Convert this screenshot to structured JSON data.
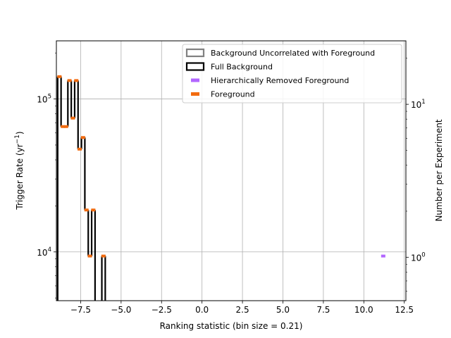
{
  "chart_data": {
    "type": "histogram",
    "xlabel": "Ranking statistic (bin size = 0.21)",
    "ylabel": "Trigger Rate (yr",
    "ylabel_sup": "−1",
    "ylabel_end": ")",
    "y2label": "Number per Experiment",
    "xlim": [
      -9.0,
      12.6
    ],
    "ylim": [
      4800,
      240000
    ],
    "y2lim": [
      0.52,
      26
    ],
    "yscale": "log",
    "y2scale": "log",
    "grid": true,
    "legend_position": "top-right",
    "xticks": [
      -7.5,
      -5.0,
      -2.5,
      0.0,
      2.5,
      5.0,
      7.5,
      10.0,
      12.5
    ],
    "xtick_labels": [
      "−7.5",
      "−5.0",
      "−2.5",
      "0.0",
      "2.5",
      "5.0",
      "7.5",
      "10.0",
      "12.5"
    ],
    "yticks": [
      {
        "value": 10000,
        "base": "10",
        "exp": "4"
      },
      {
        "value": 100000,
        "base": "10",
        "exp": "5"
      }
    ],
    "y2ticks": [
      {
        "value": 1,
        "base": "10",
        "exp": "0"
      },
      {
        "value": 10,
        "base": "10",
        "exp": "1"
      }
    ],
    "legend": [
      {
        "label": "Background Uncorrelated with Foreground",
        "style": "outline",
        "color": "#808080"
      },
      {
        "label": "Full Background",
        "style": "outline",
        "color": "#000000"
      },
      {
        "label": "Hierarchically Removed Foreground",
        "style": "marker",
        "color": "#b266ff"
      },
      {
        "label": "Foreground",
        "style": "marker",
        "color": "#f26b0f"
      }
    ],
    "series": [
      {
        "name": "Full Background",
        "kind": "step",
        "color": "#000000",
        "bin_edges": [
          -8.92,
          -8.71,
          -8.5,
          -8.29,
          -8.08,
          -7.87,
          -7.66,
          -7.45,
          -7.24,
          -7.03,
          -6.82,
          -6.61,
          -6.4,
          -6.19,
          -5.98
        ],
        "values": [
          140000,
          66000,
          66000,
          132000,
          75000,
          132000,
          47000,
          56000,
          18800,
          9400,
          18800,
          3000,
          3000,
          9400
        ]
      },
      {
        "name": "Foreground",
        "kind": "scatter",
        "marker": "square",
        "color": "#f26b0f",
        "x": [
          -8.81,
          -8.6,
          -8.4,
          -8.19,
          -7.98,
          -7.77,
          -7.56,
          -7.35,
          -7.14,
          -6.93,
          -6.72,
          -6.09
        ],
        "y": [
          140000,
          66000,
          66000,
          132000,
          75000,
          132000,
          47000,
          56000,
          18800,
          9400,
          18800,
          9400
        ]
      },
      {
        "name": "Hierarchically Removed Foreground",
        "kind": "scatter",
        "marker": "square",
        "color": "#b266ff",
        "x": [
          11.2
        ],
        "y": [
          9400
        ]
      }
    ]
  }
}
